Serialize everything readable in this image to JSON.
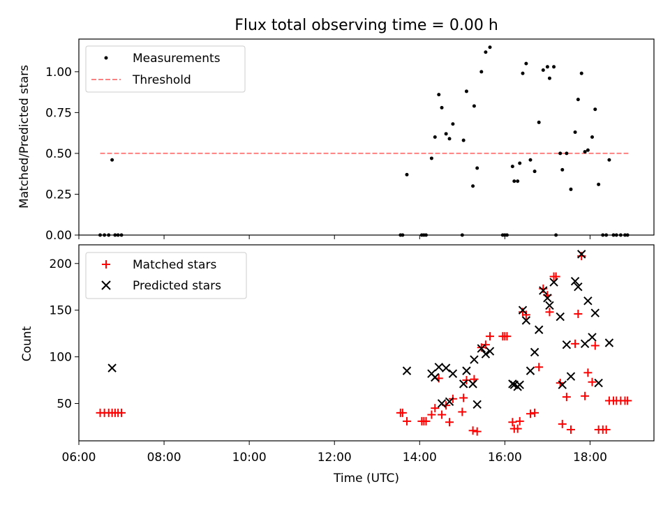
{
  "title": "Flux total observing time = 0.00 h",
  "chart_data": [
    {
      "type": "scatter",
      "ylabel": "Matched/Predicted stars",
      "xlim": [
        6.0,
        19.5
      ],
      "ylim": [
        0,
        1.2
      ],
      "x_ticks": [
        6,
        8,
        10,
        12,
        14,
        16,
        18
      ],
      "y_ticks": [
        "0.00",
        "0.25",
        "0.50",
        "0.75",
        "1.00"
      ],
      "y_tick_values": [
        0,
        0.25,
        0.5,
        0.75,
        1.0
      ],
      "legend": {
        "placement": "top-left",
        "entries": [
          "Measurements",
          "Threshold"
        ]
      },
      "threshold": {
        "name": "Threshold",
        "value": 0.5,
        "x_range": [
          6.5,
          18.9
        ],
        "color": "#ff8080"
      },
      "series": [
        {
          "name": "Measurements",
          "color": "#000000",
          "points": [
            [
              6.5,
              0
            ],
            [
              6.6,
              0
            ],
            [
              6.7,
              0
            ],
            [
              6.78,
              0.46
            ],
            [
              6.85,
              0
            ],
            [
              6.92,
              0
            ],
            [
              7.0,
              0
            ],
            [
              13.55,
              0
            ],
            [
              13.6,
              0
            ],
            [
              13.7,
              0.37
            ],
            [
              14.05,
              0
            ],
            [
              14.1,
              0
            ],
            [
              14.15,
              0
            ],
            [
              14.28,
              0.47
            ],
            [
              14.36,
              0.6
            ],
            [
              14.45,
              0.86
            ],
            [
              14.52,
              0.78
            ],
            [
              14.62,
              0.62
            ],
            [
              14.7,
              0.59
            ],
            [
              14.78,
              0.68
            ],
            [
              15.0,
              0
            ],
            [
              15.03,
              0.58
            ],
            [
              15.1,
              0.88
            ],
            [
              15.25,
              0.3
            ],
            [
              15.28,
              0.79
            ],
            [
              15.35,
              0.41
            ],
            [
              15.45,
              1.0
            ],
            [
              15.55,
              1.12
            ],
            [
              15.65,
              1.15
            ],
            [
              15.95,
              0
            ],
            [
              16.0,
              0
            ],
            [
              16.05,
              0
            ],
            [
              16.18,
              0.42
            ],
            [
              16.22,
              0.33
            ],
            [
              16.3,
              0.33
            ],
            [
              16.35,
              0.44
            ],
            [
              16.42,
              0.99
            ],
            [
              16.5,
              1.05
            ],
            [
              16.6,
              0.46
            ],
            [
              16.7,
              0.39
            ],
            [
              16.8,
              0.69
            ],
            [
              16.9,
              1.01
            ],
            [
              17.0,
              1.03
            ],
            [
              17.05,
              0.96
            ],
            [
              17.15,
              1.03
            ],
            [
              17.2,
              0
            ],
            [
              17.3,
              0.5
            ],
            [
              17.35,
              0.4
            ],
            [
              17.45,
              0.5
            ],
            [
              17.55,
              0.28
            ],
            [
              17.65,
              0.63
            ],
            [
              17.72,
              0.83
            ],
            [
              17.8,
              0.99
            ],
            [
              17.88,
              0.51
            ],
            [
              17.95,
              0.52
            ],
            [
              18.05,
              0.6
            ],
            [
              18.12,
              0.77
            ],
            [
              18.2,
              0.31
            ],
            [
              18.3,
              0
            ],
            [
              18.38,
              0
            ],
            [
              18.45,
              0.46
            ],
            [
              18.55,
              0
            ],
            [
              18.62,
              0
            ],
            [
              18.72,
              0
            ],
            [
              18.82,
              0
            ],
            [
              18.88,
              0
            ]
          ]
        }
      ]
    },
    {
      "type": "scatter",
      "xlabel": "Time (UTC)",
      "ylabel": "Count",
      "xlim": [
        6.0,
        19.5
      ],
      "ylim": [
        10,
        220
      ],
      "x_ticks": [
        6,
        8,
        10,
        12,
        14,
        16,
        18
      ],
      "x_tick_labels": [
        "06:00",
        "08:00",
        "10:00",
        "12:00",
        "14:00",
        "16:00",
        "18:00"
      ],
      "y_ticks": [
        "50",
        "100",
        "150",
        "200"
      ],
      "y_tick_values": [
        50,
        100,
        150,
        200
      ],
      "legend": {
        "placement": "top-left",
        "entries": [
          "Matched stars",
          "Predicted stars"
        ]
      },
      "series": [
        {
          "name": "Matched stars",
          "marker": "plus",
          "color": "#ff0000",
          "points": [
            [
              6.5,
              40
            ],
            [
              6.6,
              40
            ],
            [
              6.7,
              40
            ],
            [
              6.78,
              40
            ],
            [
              6.85,
              40
            ],
            [
              6.92,
              40
            ],
            [
              7.0,
              40
            ],
            [
              13.55,
              40
            ],
            [
              13.6,
              40
            ],
            [
              13.7,
              31
            ],
            [
              14.05,
              31
            ],
            [
              14.1,
              31
            ],
            [
              14.15,
              31
            ],
            [
              14.28,
              38
            ],
            [
              14.36,
              45
            ],
            [
              14.45,
              77
            ],
            [
              14.52,
              38
            ],
            [
              14.62,
              48
            ],
            [
              14.7,
              30
            ],
            [
              14.78,
              55
            ],
            [
              15.0,
              41
            ],
            [
              15.03,
              56
            ],
            [
              15.1,
              75
            ],
            [
              15.25,
              21
            ],
            [
              15.28,
              76
            ],
            [
              15.35,
              20
            ],
            [
              15.45,
              110
            ],
            [
              15.55,
              113
            ],
            [
              15.65,
              122
            ],
            [
              15.95,
              122
            ],
            [
              16.0,
              122
            ],
            [
              16.05,
              122
            ],
            [
              16.18,
              30
            ],
            [
              16.22,
              23
            ],
            [
              16.3,
              23
            ],
            [
              16.35,
              31
            ],
            [
              16.42,
              148
            ],
            [
              16.5,
              145
            ],
            [
              16.6,
              39
            ],
            [
              16.7,
              40
            ],
            [
              16.8,
              89
            ],
            [
              16.9,
              173
            ],
            [
              17.0,
              166
            ],
            [
              17.05,
              148
            ],
            [
              17.15,
              186
            ],
            [
              17.2,
              186
            ],
            [
              17.3,
              72
            ],
            [
              17.35,
              28
            ],
            [
              17.45,
              57
            ],
            [
              17.55,
              22
            ],
            [
              17.65,
              114
            ],
            [
              17.72,
              146
            ],
            [
              17.8,
              208
            ],
            [
              17.88,
              58
            ],
            [
              17.95,
              83
            ],
            [
              18.05,
              73
            ],
            [
              18.12,
              112
            ],
            [
              18.2,
              22
            ],
            [
              18.3,
              22
            ],
            [
              18.38,
              22
            ],
            [
              18.45,
              53
            ],
            [
              18.55,
              53
            ],
            [
              18.62,
              53
            ],
            [
              18.72,
              53
            ],
            [
              18.82,
              53
            ],
            [
              18.88,
              53
            ]
          ]
        },
        {
          "name": "Predicted stars",
          "marker": "x",
          "color": "#000000",
          "points": [
            [
              6.78,
              88
            ],
            [
              13.7,
              85
            ],
            [
              14.28,
              82
            ],
            [
              14.36,
              78
            ],
            [
              14.45,
              89
            ],
            [
              14.52,
              50
            ],
            [
              14.62,
              88
            ],
            [
              14.7,
              52
            ],
            [
              14.78,
              82
            ],
            [
              15.03,
              71
            ],
            [
              15.1,
              85
            ],
            [
              15.25,
              71
            ],
            [
              15.28,
              97
            ],
            [
              15.35,
              49
            ],
            [
              15.45,
              109
            ],
            [
              15.55,
              103
            ],
            [
              15.65,
              106
            ],
            [
              16.18,
              71
            ],
            [
              16.22,
              70
            ],
            [
              16.3,
              68
            ],
            [
              16.35,
              70
            ],
            [
              16.42,
              150
            ],
            [
              16.5,
              139
            ],
            [
              16.6,
              85
            ],
            [
              16.7,
              105
            ],
            [
              16.8,
              129
            ],
            [
              16.9,
              171
            ],
            [
              17.0,
              163
            ],
            [
              17.05,
              155
            ],
            [
              17.15,
              180
            ],
            [
              17.3,
              143
            ],
            [
              17.35,
              70
            ],
            [
              17.45,
              113
            ],
            [
              17.55,
              79
            ],
            [
              17.65,
              181
            ],
            [
              17.72,
              175
            ],
            [
              17.8,
              210
            ],
            [
              17.88,
              114
            ],
            [
              17.95,
              160
            ],
            [
              18.05,
              121
            ],
            [
              18.12,
              147
            ],
            [
              18.2,
              72
            ],
            [
              18.45,
              115
            ]
          ]
        }
      ]
    }
  ]
}
